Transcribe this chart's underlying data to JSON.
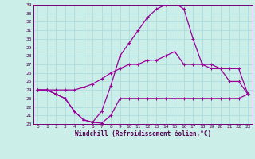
{
  "xlabel": "Windchill (Refroidissement éolien,°C)",
  "bg_color": "#cceee8",
  "grid_color": "#aadddd",
  "line_color": "#990099",
  "xlim": [
    -0.5,
    23.5
  ],
  "ylim": [
    20,
    34
  ],
  "yticks": [
    20,
    21,
    22,
    23,
    24,
    25,
    26,
    27,
    28,
    29,
    30,
    31,
    32,
    33,
    34
  ],
  "xticks": [
    0,
    1,
    2,
    3,
    4,
    5,
    6,
    7,
    8,
    9,
    10,
    11,
    12,
    13,
    14,
    15,
    16,
    17,
    18,
    19,
    20,
    21,
    22,
    23
  ],
  "series1_x": [
    0,
    1,
    2,
    3,
    4,
    5,
    6,
    7,
    8,
    9,
    10,
    11,
    12,
    13,
    14,
    15,
    16,
    17,
    18,
    19,
    20,
    21,
    22,
    23
  ],
  "series1_y": [
    24.0,
    24.0,
    23.5,
    23.0,
    21.5,
    20.5,
    20.2,
    20.1,
    21.0,
    23.0,
    23.0,
    23.0,
    23.0,
    23.0,
    23.0,
    23.0,
    23.0,
    23.0,
    23.0,
    23.0,
    23.0,
    23.0,
    23.0,
    23.5
  ],
  "series2_x": [
    0,
    1,
    2,
    3,
    4,
    5,
    6,
    7,
    8,
    9,
    10,
    11,
    12,
    13,
    14,
    15,
    16,
    17,
    18,
    19,
    20,
    21,
    22,
    23
  ],
  "series2_y": [
    24.0,
    24.0,
    23.5,
    23.0,
    21.5,
    20.5,
    20.2,
    21.5,
    24.5,
    28.0,
    29.5,
    31.0,
    32.5,
    33.5,
    34.0,
    34.2,
    33.5,
    30.0,
    27.0,
    26.5,
    26.5,
    25.0,
    25.0,
    23.5
  ],
  "series3_x": [
    0,
    1,
    2,
    3,
    4,
    5,
    6,
    7,
    8,
    9,
    10,
    11,
    12,
    13,
    14,
    15,
    16,
    17,
    18,
    19,
    20,
    21,
    22,
    23
  ],
  "series3_y": [
    24.0,
    24.0,
    24.0,
    24.0,
    24.0,
    24.3,
    24.7,
    25.3,
    26.0,
    26.5,
    27.0,
    27.0,
    27.5,
    27.5,
    28.0,
    28.5,
    27.0,
    27.0,
    27.0,
    27.0,
    26.5,
    26.5,
    26.5,
    23.5
  ],
  "title_fontsize": 5.0,
  "tick_fontsize": 4.5,
  "xlabel_fontsize": 5.5
}
